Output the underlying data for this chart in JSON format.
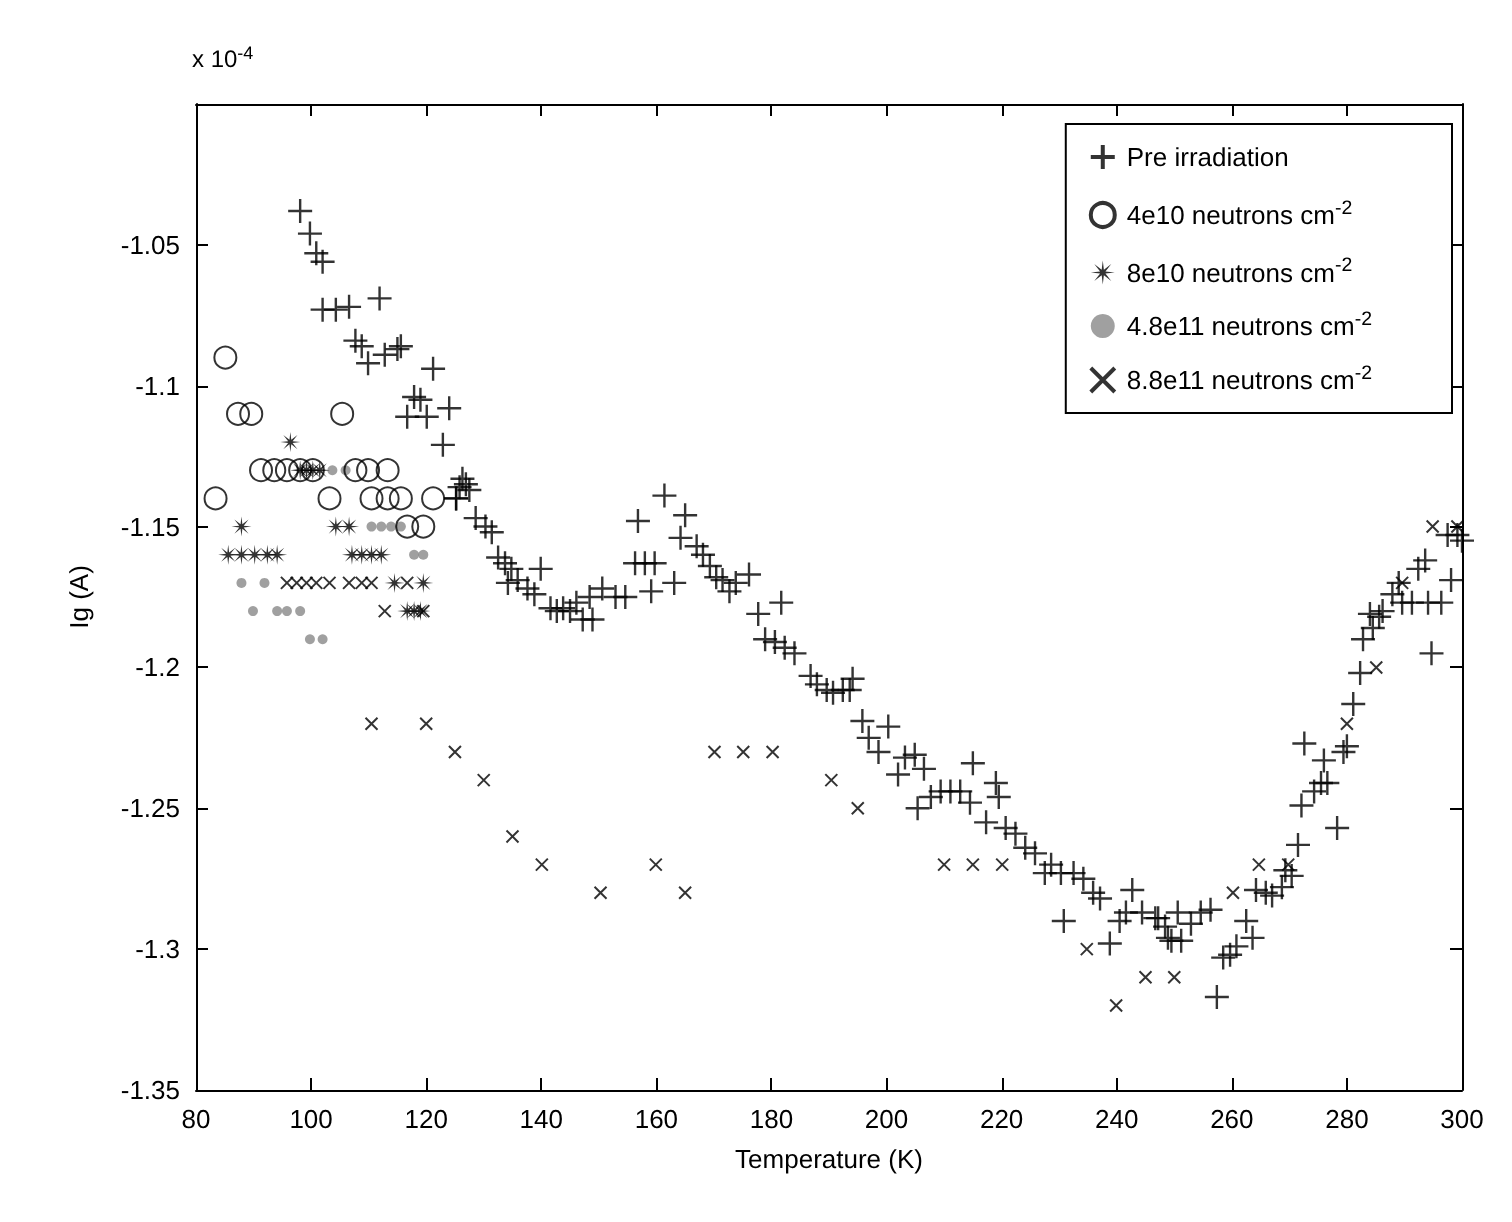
{
  "chart_data": {
    "type": "scatter",
    "xlabel": "Temperature (K)",
    "ylabel": "Ig (A)",
    "annotations": [
      "x 10$^{-4}$"
    ],
    "xlim": [
      80,
      300
    ],
    "xticks": [
      80,
      100,
      120,
      140,
      160,
      180,
      200,
      220,
      240,
      260,
      280,
      300
    ],
    "ylim": [
      -1.35,
      -1.0
    ],
    "yticks": [
      -1.35,
      -1.3,
      -1.25,
      -1.2,
      -1.15,
      -1.1,
      -1.05
    ],
    "grid": false,
    "legend": "top right",
    "series": [
      {
        "name": "Pre irradiation",
        "color": "#000000",
        "marker": "plus",
        "x": [
          98.1,
          99.8,
          100.9,
          102,
          102,
          104.3,
          106.6,
          111.9,
          107.7,
          108.8,
          109.9,
          112.8,
          115,
          115.6,
          121.2,
          117.9,
          119,
          116.7,
          120.1,
          122.9,
          124,
          125.8,
          126.9,
          125.2,
          126.3,
          127.5,
          125.2,
          128.6,
          130.3,
          131.4,
          132.5,
          133.7,
          134.8,
          139.9,
          134.2,
          135.9,
          137.6,
          138.8,
          141.6,
          142.7,
          143.8,
          145,
          147.2,
          148.9,
          146.1,
          148.4,
          150.6,
          152.9,
          154.6,
          156.8,
          156.3,
          158,
          159.7,
          159.1,
          161.4,
          163.1,
          165,
          164.2,
          167,
          168.1,
          169.3,
          170.4,
          171.5,
          172.7,
          173.8,
          176.1,
          177.7,
          181.7,
          178.9,
          180.6,
          182.3,
          184,
          186.8,
          187.9,
          189.6,
          190.7,
          192.4,
          194.1,
          193.6,
          195.8,
          196.9,
          198.6,
          200.3,
          202,
          203.2,
          204.9,
          206.5,
          205.4,
          207.7,
          209.4,
          211.1,
          212.8,
          215,
          214.5,
          219,
          219.5,
          217.3,
          220.7,
          222.4,
          224.1,
          225.8,
          227.5,
          228.6,
          230.3,
          232.5,
          234.2,
          235.9,
          237.1,
          230.8,
          238.8,
          240.5,
          242.7,
          241.6,
          244.4,
          246.7,
          248.4,
          250.6,
          249.5,
          247.2,
          248.9,
          251.2,
          252.9,
          254.6,
          256.3,
          257.4,
          258.5,
          259.7,
          260.8,
          262.5,
          263.6,
          264.2,
          265.9,
          267,
          268.7,
          269.3,
          270.4,
          271.5,
          272.1,
          272.6,
          274.3,
          275.5,
          276.6,
          276,
          278.3,
          279.4,
          280,
          281.1,
          282.3,
          282.8,
          284.5,
          284,
          285.6,
          286.2,
          287.9,
          289.6,
          289,
          291.3,
          292.4,
          293.6,
          294.7,
          294.1,
          296.4,
          298.1,
          297.5,
          299.2,
          300
        ],
        "values": [
          -1.038,
          -1.046,
          -1.053,
          -1.056,
          -1.073,
          -1.073,
          -1.072,
          -1.069,
          -1.084,
          -1.086,
          -1.092,
          -1.089,
          -1.087,
          -1.086,
          -1.094,
          -1.104,
          -1.105,
          -1.111,
          -1.111,
          -1.121,
          -1.108,
          -1.136,
          -1.135,
          -1.14,
          -1.133,
          -1.137,
          -1.14,
          -1.147,
          -1.15,
          -1.152,
          -1.161,
          -1.163,
          -1.165,
          -1.165,
          -1.17,
          -1.169,
          -1.172,
          -1.174,
          -1.179,
          -1.18,
          -1.179,
          -1.18,
          -1.183,
          -1.183,
          -1.177,
          -1.175,
          -1.172,
          -1.175,
          -1.175,
          -1.148,
          -1.163,
          -1.163,
          -1.163,
          -1.173,
          -1.139,
          -1.17,
          -1.146,
          -1.154,
          -1.157,
          -1.16,
          -1.164,
          -1.168,
          -1.169,
          -1.173,
          -1.17,
          -1.167,
          -1.181,
          -1.177,
          -1.19,
          -1.191,
          -1.193,
          -1.195,
          -1.203,
          -1.206,
          -1.208,
          -1.209,
          -1.208,
          -1.204,
          -1.208,
          -1.219,
          -1.225,
          -1.23,
          -1.221,
          -1.238,
          -1.232,
          -1.231,
          -1.236,
          -1.25,
          -1.246,
          -1.244,
          -1.244,
          -1.244,
          -1.234,
          -1.248,
          -1.241,
          -1.246,
          -1.255,
          -1.257,
          -1.259,
          -1.264,
          -1.266,
          -1.273,
          -1.27,
          -1.273,
          -1.273,
          -1.275,
          -1.28,
          -1.282,
          -1.29,
          -1.298,
          -1.29,
          -1.279,
          -1.287,
          -1.287,
          -1.289,
          -1.292,
          -1.287,
          -1.297,
          -1.289,
          -1.296,
          -1.297,
          -1.291,
          -1.287,
          -1.286,
          -1.317,
          -1.303,
          -1.302,
          -1.299,
          -1.29,
          -1.296,
          -1.279,
          -1.28,
          -1.281,
          -1.278,
          -1.272,
          -1.274,
          -1.263,
          -1.249,
          -1.227,
          -1.244,
          -1.241,
          -1.241,
          -1.233,
          -1.257,
          -1.23,
          -1.228,
          -1.213,
          -1.202,
          -1.19,
          -1.186,
          -1.181,
          -1.182,
          -1.18,
          -1.174,
          -1.177,
          -1.17,
          -1.177,
          -1.165,
          -1.162,
          -1.195,
          -1.177,
          -1.177,
          -1.169,
          -1.153,
          -1.153,
          -1.155
        ]
      },
      {
        "name": "4e10 neutrons cm$^{-2}$",
        "color": "#000000",
        "marker": "circle",
        "x": [
          83.4,
          85.1,
          87.3,
          89.6,
          91.3,
          93.6,
          95.8,
          98.1,
          100.3,
          103.2,
          105.4,
          107.7,
          109.9,
          113.3,
          110.5,
          113.3,
          115.6,
          116.7,
          119.5,
          121.2
        ],
        "values": [
          -1.14,
          -1.09,
          -1.11,
          -1.11,
          -1.13,
          -1.13,
          -1.13,
          -1.13,
          -1.13,
          -1.14,
          -1.11,
          -1.13,
          -1.13,
          -1.13,
          -1.14,
          -1.14,
          -1.14,
          -1.15,
          -1.15,
          -1.14
        ]
      },
      {
        "name": "8e10 neutrons cm$^{-2}$",
        "color": "#000000",
        "marker": "star",
        "x": [
          96.4,
          87.9,
          85.6,
          87.9,
          90.2,
          92.4,
          94.1,
          98.1,
          99.2,
          100.3,
          101.5,
          104.3,
          106.6,
          107.1,
          108.8,
          110.5,
          112.2,
          114.5,
          119.5,
          116.7,
          117.9,
          119
        ],
        "values": [
          -1.12,
          -1.15,
          -1.16,
          -1.16,
          -1.16,
          -1.16,
          -1.16,
          -1.13,
          -1.13,
          -1.13,
          -1.13,
          -1.15,
          -1.15,
          -1.16,
          -1.16,
          -1.16,
          -1.16,
          -1.17,
          -1.17,
          -1.18,
          -1.18,
          -1.18
        ]
      },
      {
        "name": "4.8e11 neutrons cm$^{-2}$",
        "color": "#888888",
        "marker": "dot",
        "x": [
          87.9,
          91.9,
          89.9,
          94.1,
          95.8,
          98.1,
          99.8,
          102,
          103.7,
          106,
          110.5,
          112.2,
          113.9,
          115.6,
          117.9,
          119.5
        ],
        "values": [
          -1.17,
          -1.17,
          -1.18,
          -1.18,
          -1.18,
          -1.18,
          -1.19,
          -1.19,
          -1.13,
          -1.13,
          -1.15,
          -1.15,
          -1.15,
          -1.15,
          -1.16,
          -1.16
        ]
      },
      {
        "name": "8.8e11 neutrons cm$^{-2}$",
        "color": "#000000",
        "marker": "cross",
        "x": [
          95.8,
          97.5,
          99.2,
          100.9,
          103.2,
          106.6,
          108.8,
          110.5,
          112.8,
          116.7,
          119.5,
          110.5,
          120,
          125,
          130,
          135,
          140.1,
          150.3,
          159.9,
          165,
          170.1,
          175.1,
          180.2,
          190.4,
          195,
          210,
          215,
          220.1,
          234.8,
          239.9,
          245,
          250,
          260.2,
          264.7,
          269.8,
          280,
          285.1,
          289.6,
          294.9,
          299.2
        ],
        "values": [
          -1.17,
          -1.17,
          -1.17,
          -1.17,
          -1.17,
          -1.17,
          -1.17,
          -1.17,
          -1.18,
          -1.17,
          -1.18,
          -1.22,
          -1.22,
          -1.23,
          -1.24,
          -1.26,
          -1.27,
          -1.28,
          -1.27,
          -1.28,
          -1.23,
          -1.23,
          -1.23,
          -1.24,
          -1.25,
          -1.27,
          -1.27,
          -1.27,
          -1.3,
          -1.32,
          -1.31,
          -1.31,
          -1.28,
          -1.27,
          -1.27,
          -1.22,
          -1.2,
          -1.17,
          -1.15,
          -1.15
        ]
      }
    ]
  }
}
